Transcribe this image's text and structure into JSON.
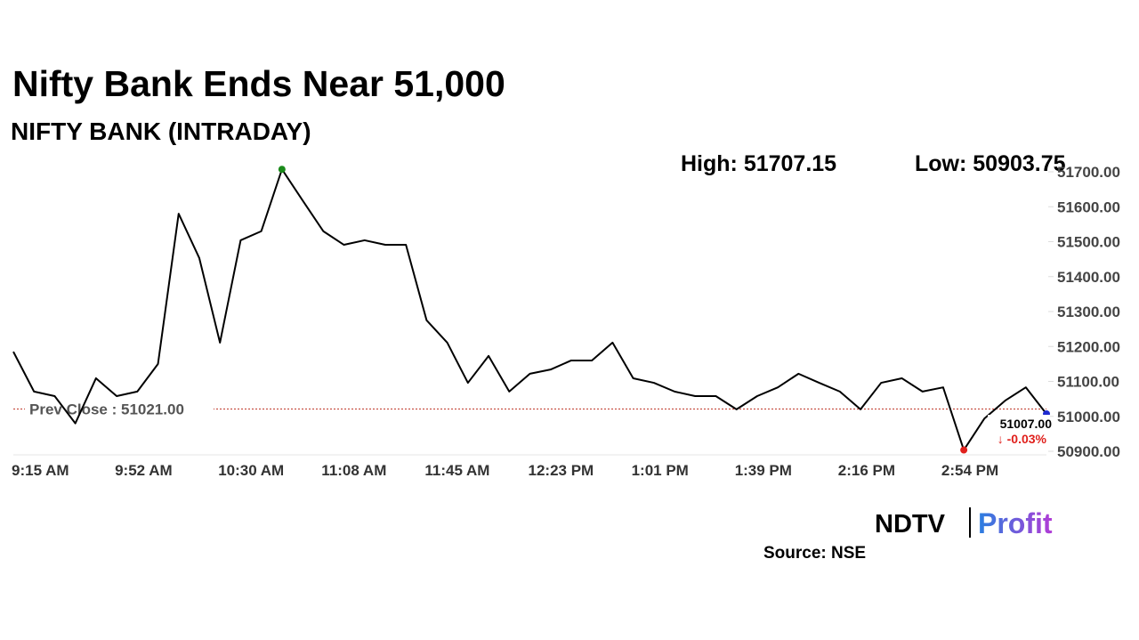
{
  "chart_data": {
    "type": "line",
    "title": "Nifty Bank Ends Near 51,000",
    "subtitle": "NIFTY BANK (INTRADAY)",
    "high": {
      "value": 51707.15,
      "label": "High: 51707.15"
    },
    "low": {
      "value": 50903.75,
      "label": "Low: 50903.75"
    },
    "prev_close": {
      "value": 51021,
      "label": "Prev Close : 51021.00"
    },
    "last": {
      "value": 51007,
      "label": "51007.00"
    },
    "change": {
      "value": -0.03,
      "label": "↓ -0.03%"
    },
    "categories": [
      "9:15 AM",
      null,
      null,
      null,
      null,
      "9:52 AM",
      null,
      null,
      null,
      null,
      "10:30 AM",
      null,
      null,
      null,
      null,
      "11:08 AM",
      null,
      null,
      null,
      null,
      "11:45 AM",
      null,
      null,
      null,
      null,
      "12:23 PM",
      null,
      null,
      null,
      null,
      "1:01 PM",
      null,
      null,
      null,
      null,
      "1:39 PM",
      null,
      null,
      null,
      null,
      "2:16 PM",
      null,
      null,
      null,
      null,
      "2:54 PM",
      null,
      null,
      null,
      null,
      null
    ],
    "series": [
      {
        "color": "#000000",
        "values": [
          51185,
          51071,
          51058,
          50980,
          51109,
          51058,
          51071,
          51150,
          51580,
          51453,
          51211,
          51504,
          51530,
          51707.15,
          51618,
          51530,
          51491,
          51504,
          51491,
          51491,
          51275,
          51211,
          51096,
          51173,
          51071,
          51122,
          51134,
          51160,
          51160,
          51211,
          51109,
          51096,
          51071,
          51058,
          51058,
          51020,
          51058,
          51083,
          51122,
          51096,
          51071,
          51020,
          51096,
          51109,
          51071,
          51083,
          50903.75,
          50994,
          51045,
          51083,
          51007
        ]
      }
    ],
    "ylim": [
      50900,
      51700
    ],
    "yticks": [
      {
        "value": 50900,
        "label": "50900.00"
      },
      {
        "value": 51000,
        "label": "51000.00"
      },
      {
        "value": 51100,
        "label": "51100.00"
      },
      {
        "value": 51200,
        "label": "51200.00"
      },
      {
        "value": 51300,
        "label": "51300.00"
      },
      {
        "value": 51400,
        "label": "51400.00"
      },
      {
        "value": 51500,
        "label": "51500.00"
      },
      {
        "value": 51600,
        "label": "51600.00"
      },
      {
        "value": 51700,
        "label": "51700.00"
      }
    ],
    "high_color": "#1a8a1a",
    "low_color": "#e0201c",
    "last_color": "#1f2bd0",
    "prev_close_color": "#c0392b",
    "logo": {
      "brand": "NDTV",
      "product": "Profit"
    },
    "source": "Source: NSE"
  }
}
